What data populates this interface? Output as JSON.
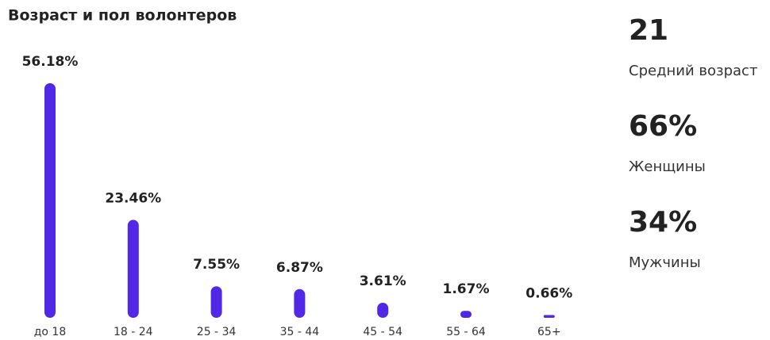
{
  "chart_data": {
    "type": "bar",
    "title": "Возраст и пол волонтеров",
    "categories": [
      "до 18",
      "18 - 24",
      "25 - 34",
      "35 - 44",
      "45 - 54",
      "55 - 64",
      "65+"
    ],
    "values": [
      56.18,
      23.46,
      7.55,
      6.87,
      3.61,
      1.67,
      0.66
    ],
    "value_labels": [
      "56.18%",
      "23.46%",
      "7.55%",
      "6.87%",
      "3.61%",
      "1.67%",
      "0.66%"
    ],
    "color": "#5128e6"
  },
  "stats": [
    {
      "value": "21",
      "label": "Средний возраст"
    },
    {
      "value": "66%",
      "label": "Женщины"
    },
    {
      "value": "34%",
      "label": "Мужчины"
    }
  ]
}
